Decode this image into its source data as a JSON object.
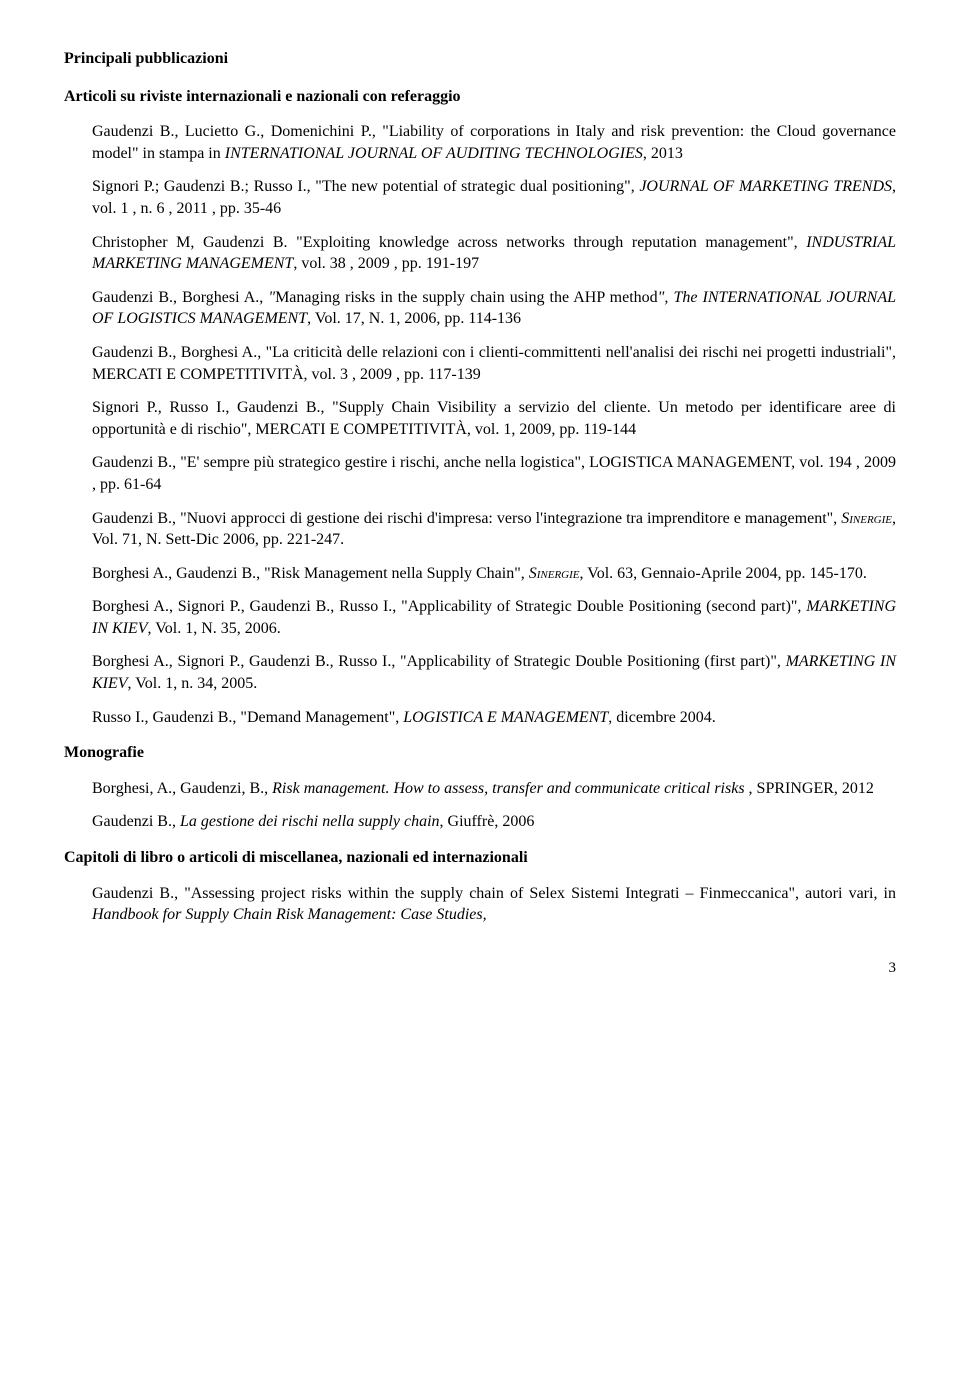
{
  "headings": {
    "main": "Principali pubblicazioni",
    "articles": "Articoli su riviste internazionali e nazionali con referaggio",
    "monographs": "Monografie",
    "chapters": "Capitoli di libro o articoli di miscellanea, nazionali ed internazionali"
  },
  "articles": [
    {
      "pre": "Gaudenzi B., Lucietto G., Domenichini P., \"Liability of corporations in Italy and risk prevention: the Cloud governance model\" in stampa in ",
      "italic": "INTERNATIONAL JOURNAL OF AUDITING TECHNOLOGIES",
      "post": ", 2013"
    },
    {
      "pre": "Signori P.; Gaudenzi B.; Russo I., \"The new potential of strategic dual positioning\", ",
      "italic": "JOURNAL OF MARKETING TRENDS",
      "post": ", vol. 1 , n. 6 , 2011 , pp. 35-46"
    },
    {
      "pre": "Christopher M, Gaudenzi B. \"Exploiting knowledge across networks through reputation management\", ",
      "italic": "INDUSTRIAL MARKETING MANAGEMENT",
      "post": ", vol. 38 , 2009 , pp. 191-197"
    },
    {
      "pre": "Gaudenzi B., Borghesi A., ",
      "italic": "\"",
      "post": "",
      "mixed": [
        {
          "t": "plain",
          "v": "Gaudenzi B., Borghesi A., "
        },
        {
          "t": "italic",
          "v": "\""
        },
        {
          "t": "plain",
          "v": "Managing risks in the supply chain using the AHP method"
        },
        {
          "t": "italic",
          "v": "\", The INTERNATIONAL JOURNAL OF LOGISTICS MANAGEMENT"
        },
        {
          "t": "plain",
          "v": ", Vol. 17, N. 1, 2006, pp. 114-136"
        }
      ]
    },
    {
      "pre": "Gaudenzi B., Borghesi A., \"La criticità delle relazioni con i clienti-committenti nell'analisi dei rischi nei progetti industriali\", MERCATI E COMPETITIVITÀ, vol. 3 , 2009 , pp. 117-139",
      "italic": "",
      "post": ""
    },
    {
      "pre": "Signori P., Russo I., Gaudenzi B., \"Supply Chain Visibility a servizio del cliente. Un metodo per identificare aree di opportunità e di rischio\", MERCATI E COMPETITIVITÀ, vol. 1, 2009, pp. 119-144",
      "italic": "",
      "post": ""
    },
    {
      "pre": "Gaudenzi B., \"E' sempre più strategico gestire i rischi, anche nella logistica\", LOGISTICA MANAGEMENT, vol. 194 , 2009 , pp. 61-64",
      "italic": "",
      "post": ""
    },
    {
      "mixed": [
        {
          "t": "plain",
          "v": "Gaudenzi B., \"Nuovi approcci di gestione dei rischi d'impresa: verso l'integrazione tra imprenditore e management\", "
        },
        {
          "t": "smallcaps-italic",
          "v": "Sinergie"
        },
        {
          "t": "plain",
          "v": ", Vol. 71, N. Sett-Dic 2006, pp. 221-247."
        }
      ]
    },
    {
      "mixed": [
        {
          "t": "plain",
          "v": "Borghesi A., Gaudenzi B., \"Risk Management nella Supply Chain\", "
        },
        {
          "t": "smallcaps-italic",
          "v": "Sinergie"
        },
        {
          "t": "plain",
          "v": ", Vol. 63, Gennaio-Aprile 2004, pp. 145-170."
        }
      ]
    },
    {
      "mixed": [
        {
          "t": "plain",
          "v": "Borghesi A., Signori P., Gaudenzi B., Russo I., \"Applicability of Strategic Double Positioning (second part)\", "
        },
        {
          "t": "italic",
          "v": "MARKETING IN KIEV"
        },
        {
          "t": "plain",
          "v": ", Vol. 1, N. 35, 2006."
        }
      ]
    },
    {
      "mixed": [
        {
          "t": "plain",
          "v": "Borghesi A., Signori P., Gaudenzi B., Russo I., \"Applicability of Strategic Double Positioning (first part)\", "
        },
        {
          "t": "italic",
          "v": "MARKETING IN KIEV"
        },
        {
          "t": "plain",
          "v": ", Vol. 1, n. 34, 2005."
        }
      ]
    },
    {
      "mixed": [
        {
          "t": "plain",
          "v": "Russo I., Gaudenzi B., \"Demand Management\", "
        },
        {
          "t": "italic",
          "v": "LOGISTICA E MANAGEMENT"
        },
        {
          "t": "plain",
          "v": ", dicembre 2004."
        }
      ]
    }
  ],
  "monographs": [
    {
      "mixed": [
        {
          "t": "plain",
          "v": "Borghesi, A., Gaudenzi, B., "
        },
        {
          "t": "italic",
          "v": "Risk management. How to assess, transfer and communicate critical risks ,"
        },
        {
          "t": "plain",
          "v": " SPRINGER, 2012"
        }
      ]
    },
    {
      "mixed": [
        {
          "t": "plain",
          "v": "Gaudenzi B., "
        },
        {
          "t": "italic",
          "v": "La gestione dei rischi nella supply chain"
        },
        {
          "t": "plain",
          "v": ", Giuffrè, 2006"
        }
      ]
    }
  ],
  "chapters": [
    {
      "mixed": [
        {
          "t": "plain",
          "v": "Gaudenzi B., \"Assessing project risks within the supply chain of Selex Sistemi Integrati – Finmeccanica\", autori vari, in "
        },
        {
          "t": "italic",
          "v": "Handbook for Supply Chain Risk Management: Case Studies,"
        }
      ]
    }
  ],
  "page_number": "3"
}
